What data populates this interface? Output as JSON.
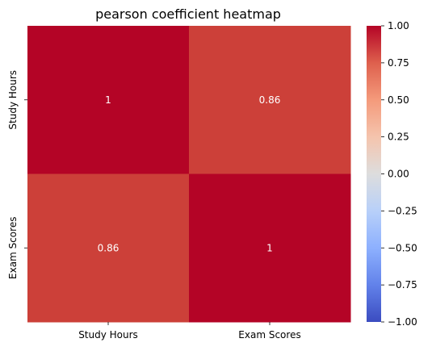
{
  "chart_data": {
    "type": "heatmap",
    "title": "pearson coefficient heatmap",
    "xlabel": "",
    "ylabel": "",
    "x_categories": [
      "Study Hours",
      "Exam Scores"
    ],
    "y_categories": [
      "Study Hours",
      "Exam Scores"
    ],
    "values": [
      [
        1,
        0.86
      ],
      [
        0.86,
        1
      ]
    ],
    "cell_labels": [
      [
        "1",
        "0.86"
      ],
      [
        "0.86",
        "1"
      ]
    ],
    "colormap": "coolwarm",
    "vmin": -1.0,
    "vmax": 1.0,
    "colorbar_ticks": [
      1.0,
      0.75,
      0.5,
      0.25,
      0.0,
      -0.25,
      -0.5,
      -0.75,
      -1.0
    ],
    "colorbar_tick_labels": [
      "1.00",
      "0.75",
      "0.50",
      "0.25",
      "0.00",
      "−0.25",
      "−0.50",
      "−0.75",
      "−1.00"
    ],
    "colors": {
      "cold": "#3b4cc0",
      "neutral": "#dddddd",
      "hot": "#b40426",
      "cell_high": "#b40426",
      "cell_086": "#cc4039"
    }
  }
}
